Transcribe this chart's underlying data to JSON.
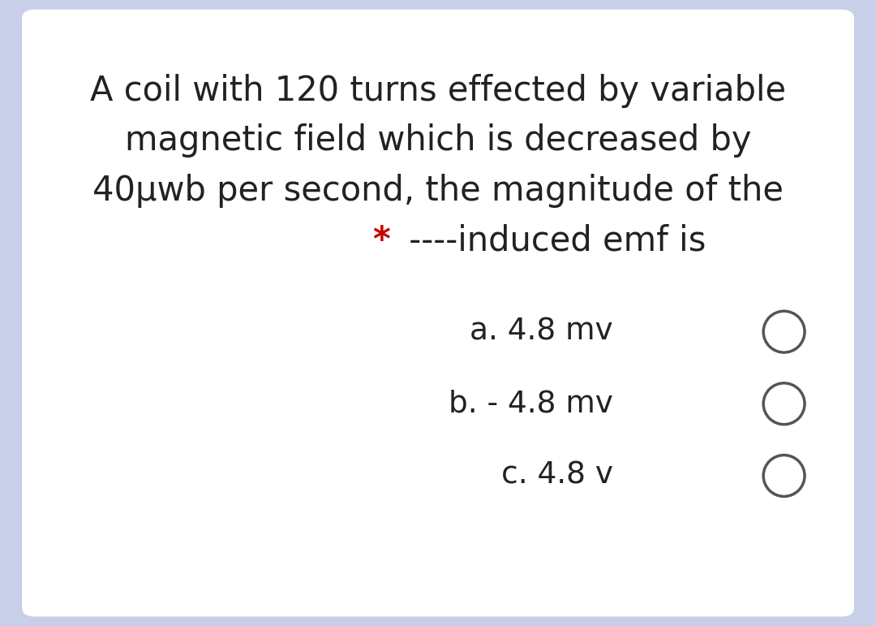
{
  "background_outer": "#c8cfe8",
  "background_inner": "#ffffff",
  "text_color": "#222222",
  "star_color": "#cc0000",
  "line1": "A coil with 120 turns effected by variable",
  "line2": "magnetic field which is decreased by",
  "line3": "40μwb per second, the magnitude of the",
  "line4_star": "*",
  "line4_main": " ----induced emf is",
  "option_a": "a. 4.8 mv",
  "option_b": "b. - 4.8 mv",
  "option_c": "c. 4.8 v",
  "circle_color": "#555555",
  "font_size_main": 30,
  "font_size_options": 27,
  "figwidth": 10.8,
  "figheight": 7.71
}
